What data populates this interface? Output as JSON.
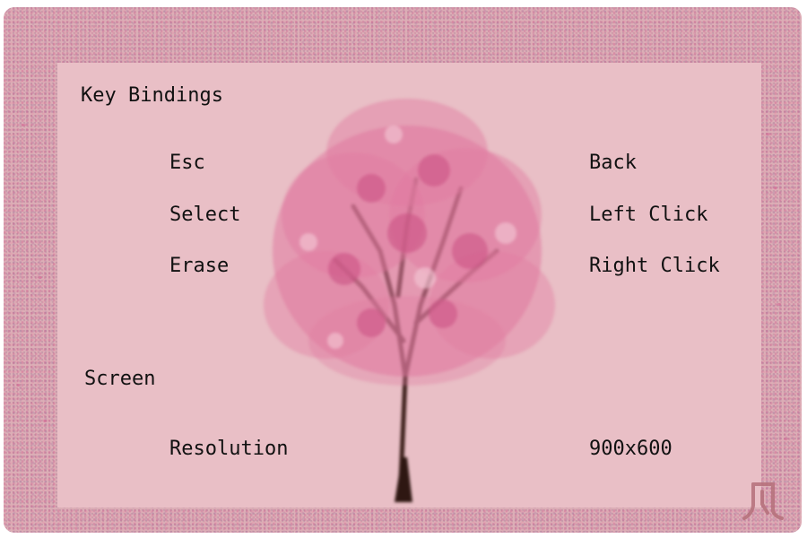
{
  "sections": {
    "key_bindings": {
      "title": "Key Bindings",
      "rows": [
        {
          "action": "Esc",
          "binding": "Back"
        },
        {
          "action": "Select",
          "binding": "Left Click"
        },
        {
          "action": "Erase",
          "binding": "Right Click"
        }
      ]
    },
    "screen": {
      "title": "Screen",
      "rows": [
        {
          "action": "Resolution",
          "value": "900x600"
        }
      ]
    }
  },
  "background": {
    "scene": "cherry-blossom-tree",
    "colors": {
      "frame": "#dcaeb6",
      "panel": "#e9bfc6",
      "blossom": "#e07aa0",
      "trunk": "#3b1f1a",
      "text": "#111111"
    }
  },
  "logo_icon": "studio-logo-icon"
}
